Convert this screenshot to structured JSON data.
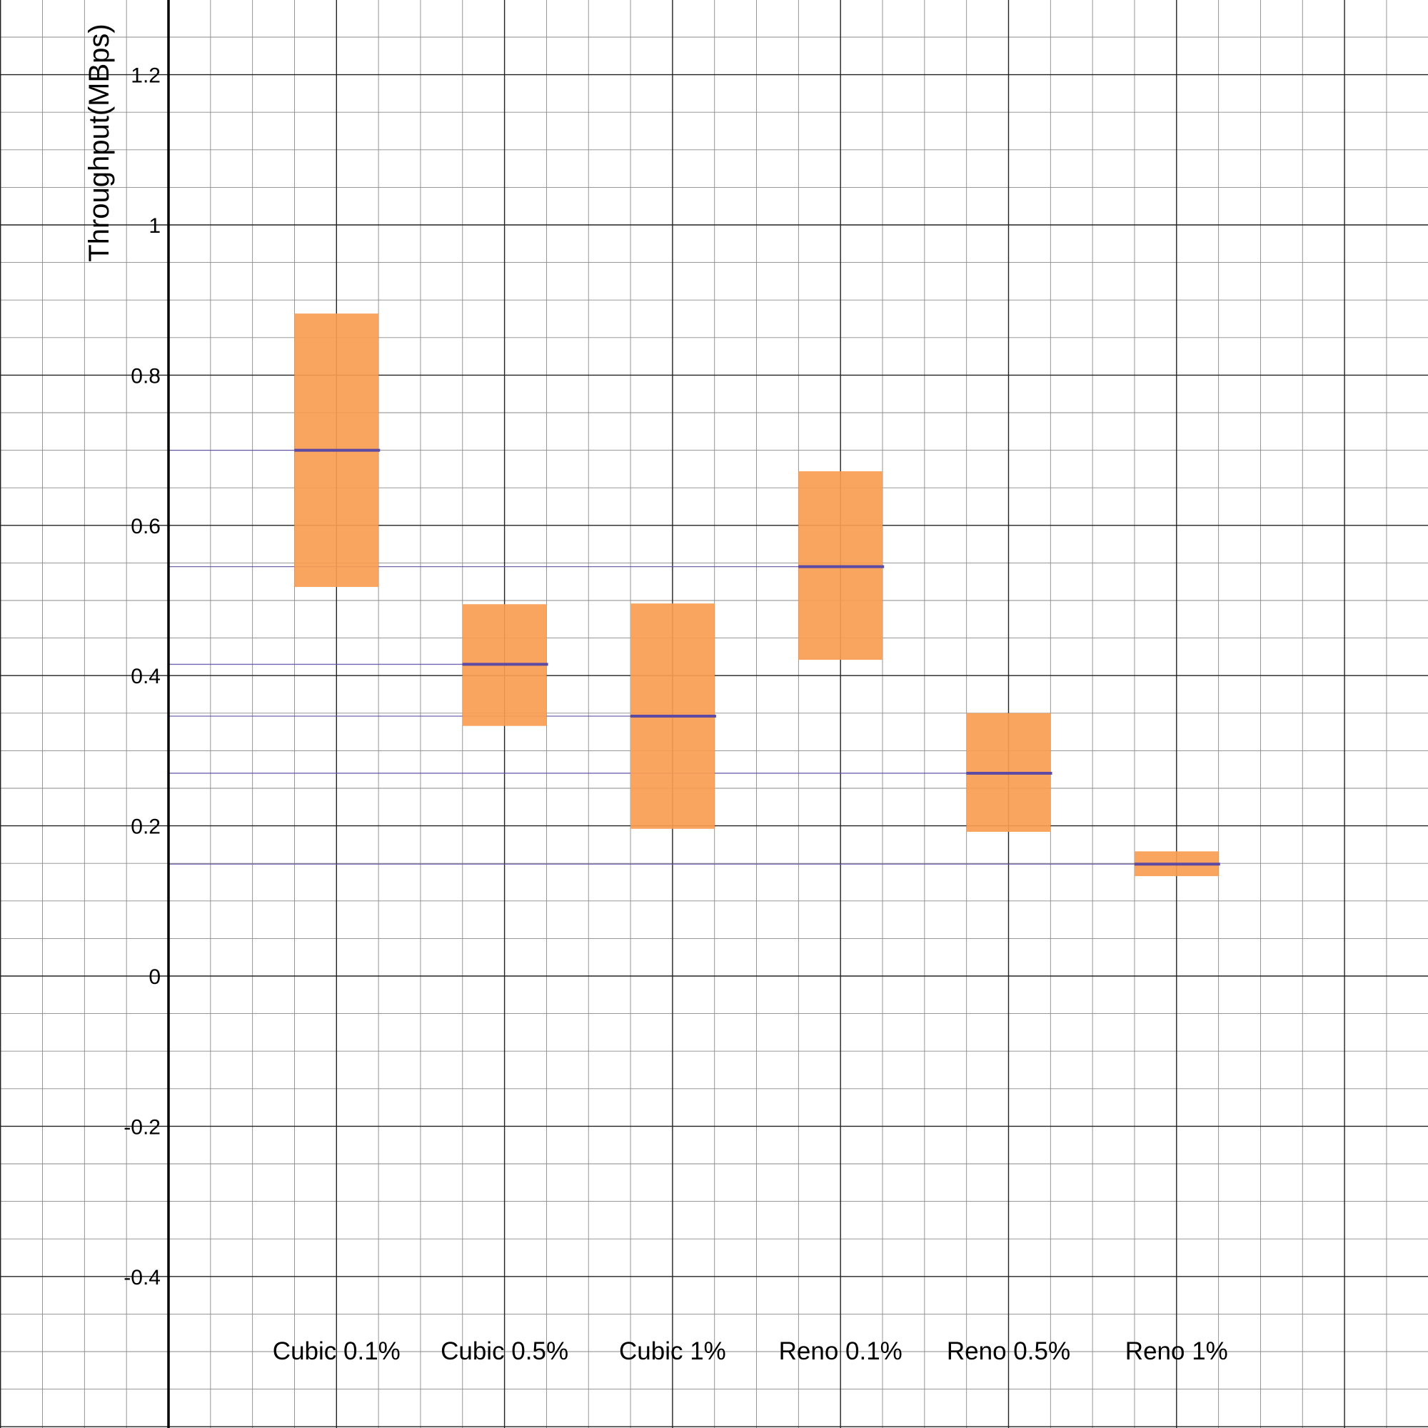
{
  "chart_data": {
    "type": "bar",
    "subtype": "floating-range-with-mean",
    "title": "",
    "xlabel": "",
    "ylabel": "Throughput(MBps)",
    "ylim": [
      -0.6,
      1.3
    ],
    "y_ticks": [
      "-0.4",
      "-0.2",
      "0",
      "0.2",
      "0.4",
      "0.6",
      "0.8",
      "1",
      "1.2"
    ],
    "y_tick_values": [
      -0.4,
      -0.2,
      0,
      0.2,
      0.4,
      0.6,
      0.8,
      1.0,
      1.2
    ],
    "grid": true,
    "categories": [
      "Cubic 0.1%",
      "Cubic 0.5%",
      "Cubic 1%",
      "Reno 0.1%",
      "Reno 0.5%",
      "Reno 1%"
    ],
    "series": [
      {
        "name": "",
        "kind": "range_low",
        "values": [
          0.518,
          0.333,
          0.196,
          0.421,
          0.192,
          0.133
        ]
      },
      {
        "name": "",
        "kind": "range_high",
        "values": [
          0.882,
          0.495,
          0.496,
          0.672,
          0.35,
          0.166
        ]
      },
      {
        "name": "",
        "kind": "mean",
        "values": [
          0.7,
          0.415,
          0.346,
          0.545,
          0.27,
          0.149
        ]
      }
    ],
    "colors": {
      "range": "#f89d52",
      "mean": "#5d4aa3",
      "grid_minor": "#8a8a8a",
      "grid_major": "#222222"
    }
  }
}
